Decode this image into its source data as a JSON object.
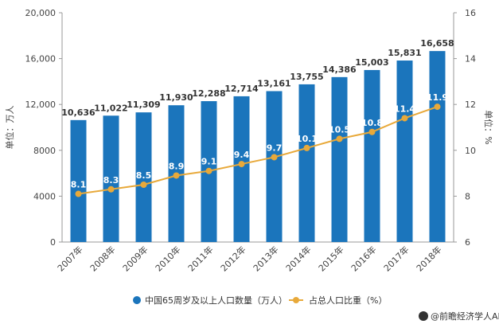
{
  "chart_data": {
    "type": "bar+line",
    "categories": [
      "2007年",
      "2008年",
      "2009年",
      "2010年",
      "2011年",
      "2012年",
      "2013年",
      "2014年",
      "2015年",
      "2016年",
      "2017年",
      "2018年"
    ],
    "series": [
      {
        "name": "中国65周岁及以上人口数量（万人）",
        "type": "bar",
        "axis": "left",
        "color": "#1b75bc",
        "values": [
          10636,
          11022,
          11309,
          11930,
          12288,
          12714,
          13161,
          13755,
          14386,
          15003,
          15831,
          16658
        ],
        "labels": [
          "10,636",
          "11,022",
          "11,309",
          "11,930",
          "12,288",
          "12,714",
          "13,161",
          "13,755",
          "14,386",
          "15,003",
          "15,831",
          "16,658"
        ]
      },
      {
        "name": "占总人口比重（%）",
        "type": "line",
        "axis": "right",
        "color": "#e8a93a",
        "values": [
          8.1,
          8.3,
          8.5,
          8.9,
          9.1,
          9.4,
          9.7,
          10.1,
          10.5,
          10.8,
          11.4,
          11.9
        ],
        "labels": [
          "8.1",
          "8.3",
          "8.5",
          "8.9",
          "9.1",
          "9.4",
          "9.7",
          "10.1",
          "10.5",
          "10.8",
          "11.4",
          "11.9"
        ]
      }
    ],
    "left_axis": {
      "label": "单位：万人",
      "range": [
        0,
        20000
      ],
      "ticks": [
        0,
        4000,
        8000,
        12000,
        16000,
        20000
      ],
      "tick_labels": [
        "0",
        "4000",
        "8000",
        "12,000",
        "16,000",
        "20,000"
      ]
    },
    "right_axis": {
      "label": "单位：%",
      "range": [
        6,
        16
      ],
      "ticks": [
        6,
        8,
        10,
        12,
        14,
        16
      ],
      "tick_labels": [
        "6",
        "8",
        "10",
        "12",
        "14",
        "16"
      ]
    },
    "legend_position": "bottom",
    "grid": false
  },
  "footer": {
    "credit": "@前瞻经济学人APP"
  },
  "colors": {
    "bar": "#1b75bc",
    "line": "#e8a93a",
    "axis": "#666666"
  }
}
